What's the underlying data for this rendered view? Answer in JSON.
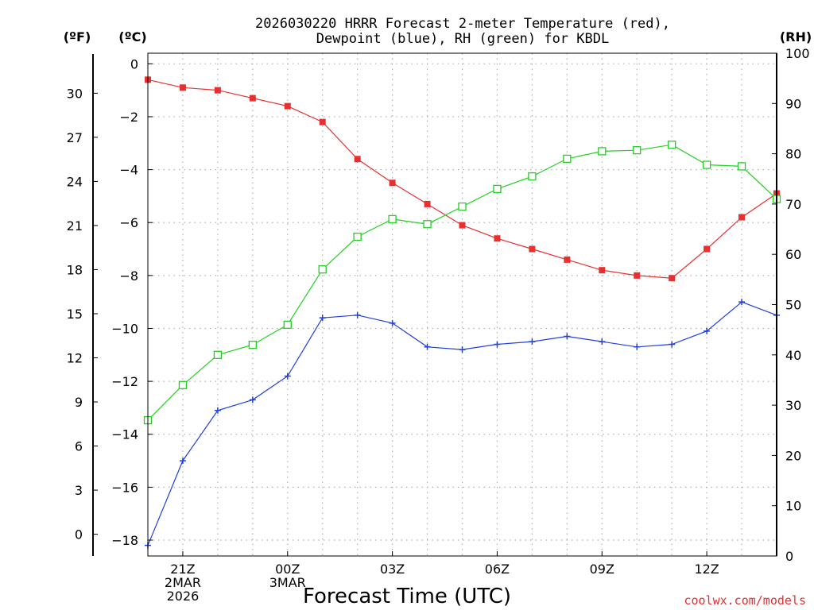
{
  "chart_data": {
    "type": "line",
    "title_line1": "2026030220 HRRR Forecast 2-meter Temperature (red),",
    "title_line2": "Dewpoint (blue), RH (green) for KBDL",
    "units": {
      "left_f": "(ºF)",
      "left_c": "(ºC)",
      "right_rh": "(RH)"
    },
    "xlabel": "Forecast Time (UTC)",
    "credit": "coolwx.com/models",
    "x_hours": [
      20,
      21,
      22,
      23,
      24,
      25,
      26,
      27,
      28,
      29,
      30,
      31,
      32,
      33,
      34,
      35,
      36,
      37,
      38
    ],
    "x_ticks": [
      {
        "hour": 21,
        "lines": [
          "21Z",
          "2MAR",
          "2026"
        ]
      },
      {
        "hour": 24,
        "lines": [
          "00Z",
          "3MAR"
        ]
      },
      {
        "hour": 27,
        "lines": [
          "03Z"
        ]
      },
      {
        "hour": 30,
        "lines": [
          "06Z"
        ]
      },
      {
        "hour": 33,
        "lines": [
          "09Z"
        ]
      },
      {
        "hour": 36,
        "lines": [
          "12Z"
        ]
      }
    ],
    "celsius_axis": {
      "min": -18.6,
      "max": 0.4,
      "ticks": [
        0,
        -2,
        -4,
        -6,
        -8,
        -10,
        -12,
        -14,
        -16,
        -18
      ]
    },
    "fahrenheit_ticks": [
      30,
      27,
      24,
      21,
      18,
      15,
      12,
      9,
      6,
      3,
      0
    ],
    "rh_axis": {
      "min": 0,
      "max": 100,
      "ticks": [
        0,
        10,
        20,
        30,
        40,
        50,
        60,
        70,
        80,
        90,
        100
      ]
    },
    "series": [
      {
        "name": "Temperature",
        "axis": "celsius",
        "color": "#e83030",
        "marker": "filled-square",
        "values": [
          -0.6,
          -0.9,
          -1.0,
          -1.3,
          -1.6,
          -2.2,
          -3.6,
          -4.5,
          -5.3,
          -6.1,
          -6.6,
          -7.0,
          -7.4,
          -7.8,
          -8.0,
          -8.1,
          -7.0,
          -5.8,
          -4.9
        ]
      },
      {
        "name": "Dewpoint",
        "axis": "celsius",
        "color": "#2040e0",
        "marker": "plus",
        "values": [
          -18.2,
          -15.0,
          -13.1,
          -12.7,
          -11.8,
          -9.6,
          -9.5,
          -9.8,
          -10.7,
          -10.8,
          -10.6,
          -10.5,
          -10.3,
          -10.5,
          -10.7,
          -10.6,
          -10.1,
          -9.0,
          -9.5
        ]
      },
      {
        "name": "RH",
        "axis": "rh",
        "color": "#22d022",
        "marker": "open-square",
        "values": [
          27,
          34,
          40,
          42,
          46,
          57,
          63.5,
          67,
          66,
          69.5,
          73,
          75.5,
          79,
          80.5,
          80.7,
          81.8,
          77.8,
          77.5,
          71
        ]
      }
    ]
  }
}
